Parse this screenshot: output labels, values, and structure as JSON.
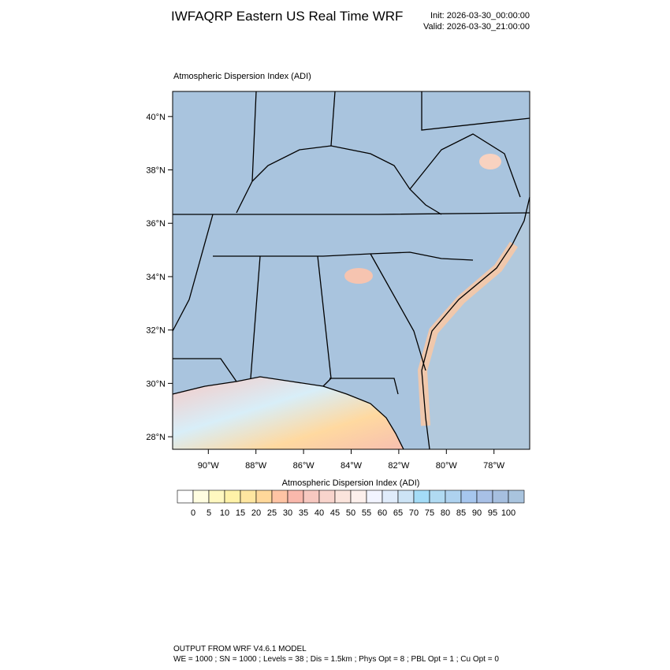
{
  "header": {
    "title": "IWFAQRP Eastern US Real Time WRF",
    "init": "Init: 2026-03-30_00:00:00",
    "valid": "Valid: 2026-03-30_21:00:00"
  },
  "map": {
    "title": "Atmospheric Dispersion Index   (ADI)",
    "xlim": [
      -91.5,
      -76.5
    ],
    "ylim": [
      27.53,
      40.94
    ],
    "xticks": [
      {
        "value": -90,
        "label": "90°W"
      },
      {
        "value": -88,
        "label": "88°W"
      },
      {
        "value": -86,
        "label": "86°W"
      },
      {
        "value": -84,
        "label": "84°W"
      },
      {
        "value": -82,
        "label": "82°W"
      },
      {
        "value": -80,
        "label": "80°W"
      },
      {
        "value": -78,
        "label": "78°W"
      }
    ],
    "yticks": [
      {
        "value": 28,
        "label": "28°N"
      },
      {
        "value": 30,
        "label": "30°N"
      },
      {
        "value": 32,
        "label": "32°N"
      },
      {
        "value": 34,
        "label": "34°N"
      },
      {
        "value": 36,
        "label": "36°N"
      },
      {
        "value": 38,
        "label": "38°N"
      },
      {
        "value": 40,
        "label": "40°N"
      }
    ]
  },
  "colorbar": {
    "title": "Atmospheric Dispersion Index  (ADI)",
    "ticks": [
      0,
      5,
      10,
      15,
      20,
      25,
      30,
      35,
      40,
      45,
      50,
      55,
      60,
      65,
      70,
      75,
      80,
      85,
      90,
      95,
      100
    ],
    "colors": [
      "#ffffff",
      "#fffde0",
      "#fff8c0",
      "#fff2a8",
      "#ffe6a0",
      "#ffd89a",
      "#ffc4a4",
      "#f9b8ac",
      "#f7c8c0",
      "#f8d4cc",
      "#fbe4dc",
      "#fdf0ec",
      "#f2f4ff",
      "#e0ecfb",
      "#cde4f6",
      "#a4dcf7",
      "#b0daf2",
      "#aed2ef",
      "#a6c6ee",
      "#a8c0e6",
      "#a6bfdf",
      "#a9c4de"
    ]
  },
  "footer": {
    "line1": "OUTPUT FROM WRF V4.6.1 MODEL",
    "line2": "WE = 1000 ; SN = 1000 ; Levels = 38 ; Dis = 1.5km ; Phys Opt = 8 ; PBL Opt = 1 ; Cu Opt = 0"
  }
}
